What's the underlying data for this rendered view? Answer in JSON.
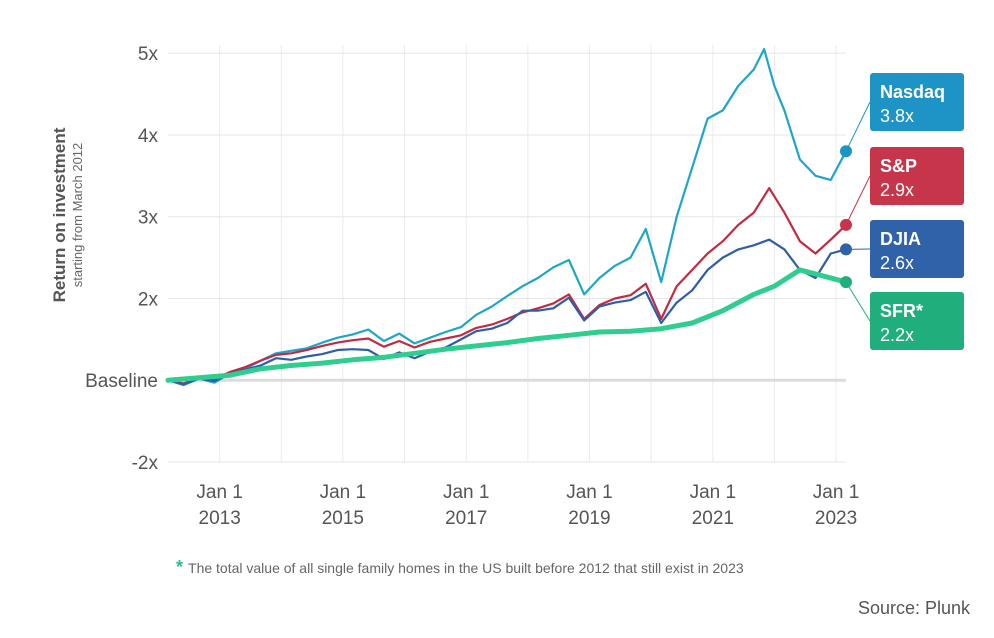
{
  "chart_data": {
    "type": "line",
    "ylabel": "Return on investment",
    "ylabel_sub": "starting from March 2012",
    "y_ticks": [
      {
        "value": 5,
        "label": "5x"
      },
      {
        "value": 4,
        "label": "4x"
      },
      {
        "value": 3,
        "label": "3x"
      },
      {
        "value": 2,
        "label": "2x"
      },
      {
        "value": 1,
        "label": "Baseline"
      },
      {
        "value": 0,
        "label": "-2x"
      }
    ],
    "ylim": [
      0,
      5.1
    ],
    "x_ticks": [
      {
        "date": "2013-01-01",
        "line1": "Jan 1",
        "line2": "2013"
      },
      {
        "date": "2015-01-01",
        "line1": "Jan 1",
        "line2": "2015"
      },
      {
        "date": "2017-01-01",
        "line1": "Jan 1",
        "line2": "2017"
      },
      {
        "date": "2019-01-01",
        "line1": "Jan 1",
        "line2": "2019"
      },
      {
        "date": "2021-01-01",
        "line1": "Jan 1",
        "line2": "2021"
      },
      {
        "date": "2023-01-01",
        "line1": "Jan 1",
        "line2": "2023"
      }
    ],
    "xlim": [
      "2012-03-01",
      "2023-03-01"
    ],
    "grid": true,
    "series": [
      {
        "name": "Nasdaq",
        "label": "3.8x",
        "color": "#1ea6c9",
        "badge": "#1e93c6",
        "points": [
          [
            "2012-03-01",
            1.0
          ],
          [
            "2012-06-01",
            0.94
          ],
          [
            "2012-09-01",
            1.02
          ],
          [
            "2012-12-01",
            0.97
          ],
          [
            "2013-03-01",
            1.08
          ],
          [
            "2013-06-01",
            1.14
          ],
          [
            "2013-09-01",
            1.24
          ],
          [
            "2013-12-01",
            1.33
          ],
          [
            "2014-03-01",
            1.36
          ],
          [
            "2014-06-01",
            1.39
          ],
          [
            "2014-09-01",
            1.46
          ],
          [
            "2014-12-01",
            1.52
          ],
          [
            "2015-03-01",
            1.56
          ],
          [
            "2015-06-01",
            1.62
          ],
          [
            "2015-09-01",
            1.48
          ],
          [
            "2015-12-01",
            1.57
          ],
          [
            "2016-03-01",
            1.45
          ],
          [
            "2016-06-01",
            1.52
          ],
          [
            "2016-09-01",
            1.59
          ],
          [
            "2016-12-01",
            1.65
          ],
          [
            "2017-03-01",
            1.8
          ],
          [
            "2017-06-01",
            1.9
          ],
          [
            "2017-09-01",
            2.03
          ],
          [
            "2017-12-01",
            2.15
          ],
          [
            "2018-03-01",
            2.25
          ],
          [
            "2018-06-01",
            2.38
          ],
          [
            "2018-09-01",
            2.47
          ],
          [
            "2018-12-01",
            2.05
          ],
          [
            "2019-03-01",
            2.25
          ],
          [
            "2019-06-01",
            2.4
          ],
          [
            "2019-09-01",
            2.5
          ],
          [
            "2019-12-01",
            2.85
          ],
          [
            "2020-03-01",
            2.2
          ],
          [
            "2020-06-01",
            3.0
          ],
          [
            "2020-09-01",
            3.6
          ],
          [
            "2020-12-01",
            4.2
          ],
          [
            "2021-03-01",
            4.3
          ],
          [
            "2021-06-01",
            4.6
          ],
          [
            "2021-09-01",
            4.8
          ],
          [
            "2021-11-01",
            5.05
          ],
          [
            "2022-01-01",
            4.6
          ],
          [
            "2022-03-01",
            4.3
          ],
          [
            "2022-06-01",
            3.7
          ],
          [
            "2022-09-01",
            3.5
          ],
          [
            "2022-12-01",
            3.45
          ],
          [
            "2023-03-01",
            3.8
          ]
        ]
      },
      {
        "name": "S&P",
        "label": "2.9x",
        "color": "#c02b44",
        "badge": "#c7354b",
        "points": [
          [
            "2012-03-01",
            1.0
          ],
          [
            "2012-06-01",
            0.96
          ],
          [
            "2012-09-01",
            1.03
          ],
          [
            "2012-12-01",
            1.01
          ],
          [
            "2013-03-01",
            1.1
          ],
          [
            "2013-06-01",
            1.16
          ],
          [
            "2013-09-01",
            1.24
          ],
          [
            "2013-12-01",
            1.31
          ],
          [
            "2014-03-01",
            1.33
          ],
          [
            "2014-06-01",
            1.37
          ],
          [
            "2014-09-01",
            1.42
          ],
          [
            "2014-12-01",
            1.46
          ],
          [
            "2015-03-01",
            1.49
          ],
          [
            "2015-06-01",
            1.51
          ],
          [
            "2015-09-01",
            1.41
          ],
          [
            "2015-12-01",
            1.48
          ],
          [
            "2016-03-01",
            1.4
          ],
          [
            "2016-06-01",
            1.47
          ],
          [
            "2016-09-01",
            1.51
          ],
          [
            "2016-12-01",
            1.55
          ],
          [
            "2017-03-01",
            1.64
          ],
          [
            "2017-06-01",
            1.68
          ],
          [
            "2017-09-01",
            1.75
          ],
          [
            "2017-12-01",
            1.83
          ],
          [
            "2018-03-01",
            1.88
          ],
          [
            "2018-06-01",
            1.94
          ],
          [
            "2018-09-01",
            2.05
          ],
          [
            "2018-12-01",
            1.75
          ],
          [
            "2019-03-01",
            1.92
          ],
          [
            "2019-06-01",
            2.0
          ],
          [
            "2019-09-01",
            2.04
          ],
          [
            "2019-12-01",
            2.18
          ],
          [
            "2020-03-01",
            1.75
          ],
          [
            "2020-06-01",
            2.15
          ],
          [
            "2020-09-01",
            2.35
          ],
          [
            "2020-12-01",
            2.55
          ],
          [
            "2021-03-01",
            2.7
          ],
          [
            "2021-06-01",
            2.9
          ],
          [
            "2021-09-01",
            3.05
          ],
          [
            "2021-12-01",
            3.35
          ],
          [
            "2022-03-01",
            3.05
          ],
          [
            "2022-06-01",
            2.7
          ],
          [
            "2022-09-01",
            2.55
          ],
          [
            "2022-12-01",
            2.72
          ],
          [
            "2023-03-01",
            2.9
          ]
        ]
      },
      {
        "name": "DJIA",
        "label": "2.6x",
        "color": "#2f5ea8",
        "badge": "#2f62a9",
        "points": [
          [
            "2012-03-01",
            1.0
          ],
          [
            "2012-06-01",
            0.95
          ],
          [
            "2012-09-01",
            1.02
          ],
          [
            "2012-12-01",
            0.99
          ],
          [
            "2013-03-01",
            1.08
          ],
          [
            "2013-06-01",
            1.13
          ],
          [
            "2013-09-01",
            1.18
          ],
          [
            "2013-12-01",
            1.27
          ],
          [
            "2014-03-01",
            1.25
          ],
          [
            "2014-06-01",
            1.29
          ],
          [
            "2014-09-01",
            1.32
          ],
          [
            "2014-12-01",
            1.37
          ],
          [
            "2015-03-01",
            1.38
          ],
          [
            "2015-06-01",
            1.37
          ],
          [
            "2015-09-01",
            1.26
          ],
          [
            "2015-12-01",
            1.34
          ],
          [
            "2016-03-01",
            1.27
          ],
          [
            "2016-06-01",
            1.35
          ],
          [
            "2016-09-01",
            1.4
          ],
          [
            "2016-12-01",
            1.5
          ],
          [
            "2017-03-01",
            1.6
          ],
          [
            "2017-06-01",
            1.63
          ],
          [
            "2017-09-01",
            1.7
          ],
          [
            "2017-12-01",
            1.85
          ],
          [
            "2018-03-01",
            1.85
          ],
          [
            "2018-06-01",
            1.88
          ],
          [
            "2018-09-01",
            2.01
          ],
          [
            "2018-12-01",
            1.73
          ],
          [
            "2019-03-01",
            1.9
          ],
          [
            "2019-06-01",
            1.95
          ],
          [
            "2019-09-01",
            1.98
          ],
          [
            "2019-12-01",
            2.08
          ],
          [
            "2020-03-01",
            1.7
          ],
          [
            "2020-06-01",
            1.95
          ],
          [
            "2020-09-01",
            2.1
          ],
          [
            "2020-12-01",
            2.35
          ],
          [
            "2021-03-01",
            2.5
          ],
          [
            "2021-06-01",
            2.6
          ],
          [
            "2021-09-01",
            2.65
          ],
          [
            "2021-12-01",
            2.72
          ],
          [
            "2022-03-01",
            2.6
          ],
          [
            "2022-06-01",
            2.35
          ],
          [
            "2022-09-01",
            2.25
          ],
          [
            "2022-12-01",
            2.55
          ],
          [
            "2023-03-01",
            2.6
          ]
        ]
      },
      {
        "name": "SFR*",
        "label": "2.2x",
        "color": "#2fce8e",
        "badge": "#1fae7c",
        "points": [
          [
            "2012-03-01",
            1.0
          ],
          [
            "2012-09-01",
            1.03
          ],
          [
            "2013-03-01",
            1.06
          ],
          [
            "2013-09-01",
            1.14
          ],
          [
            "2014-03-01",
            1.18
          ],
          [
            "2014-09-01",
            1.21
          ],
          [
            "2015-03-01",
            1.25
          ],
          [
            "2015-09-01",
            1.28
          ],
          [
            "2016-03-01",
            1.33
          ],
          [
            "2016-09-01",
            1.38
          ],
          [
            "2017-03-01",
            1.42
          ],
          [
            "2017-09-01",
            1.46
          ],
          [
            "2018-03-01",
            1.51
          ],
          [
            "2018-09-01",
            1.55
          ],
          [
            "2019-03-01",
            1.59
          ],
          [
            "2019-09-01",
            1.6
          ],
          [
            "2020-03-01",
            1.63
          ],
          [
            "2020-09-01",
            1.7
          ],
          [
            "2021-03-01",
            1.85
          ],
          [
            "2021-09-01",
            2.05
          ],
          [
            "2022-01-01",
            2.15
          ],
          [
            "2022-06-01",
            2.35
          ],
          [
            "2022-09-01",
            2.3
          ],
          [
            "2023-03-01",
            2.2
          ]
        ]
      }
    ]
  },
  "footnote": {
    "star": "*",
    "text": "The total value of all single family homes in the US built before 2012 that still exist in 2023"
  },
  "source": "Source: Plunk"
}
